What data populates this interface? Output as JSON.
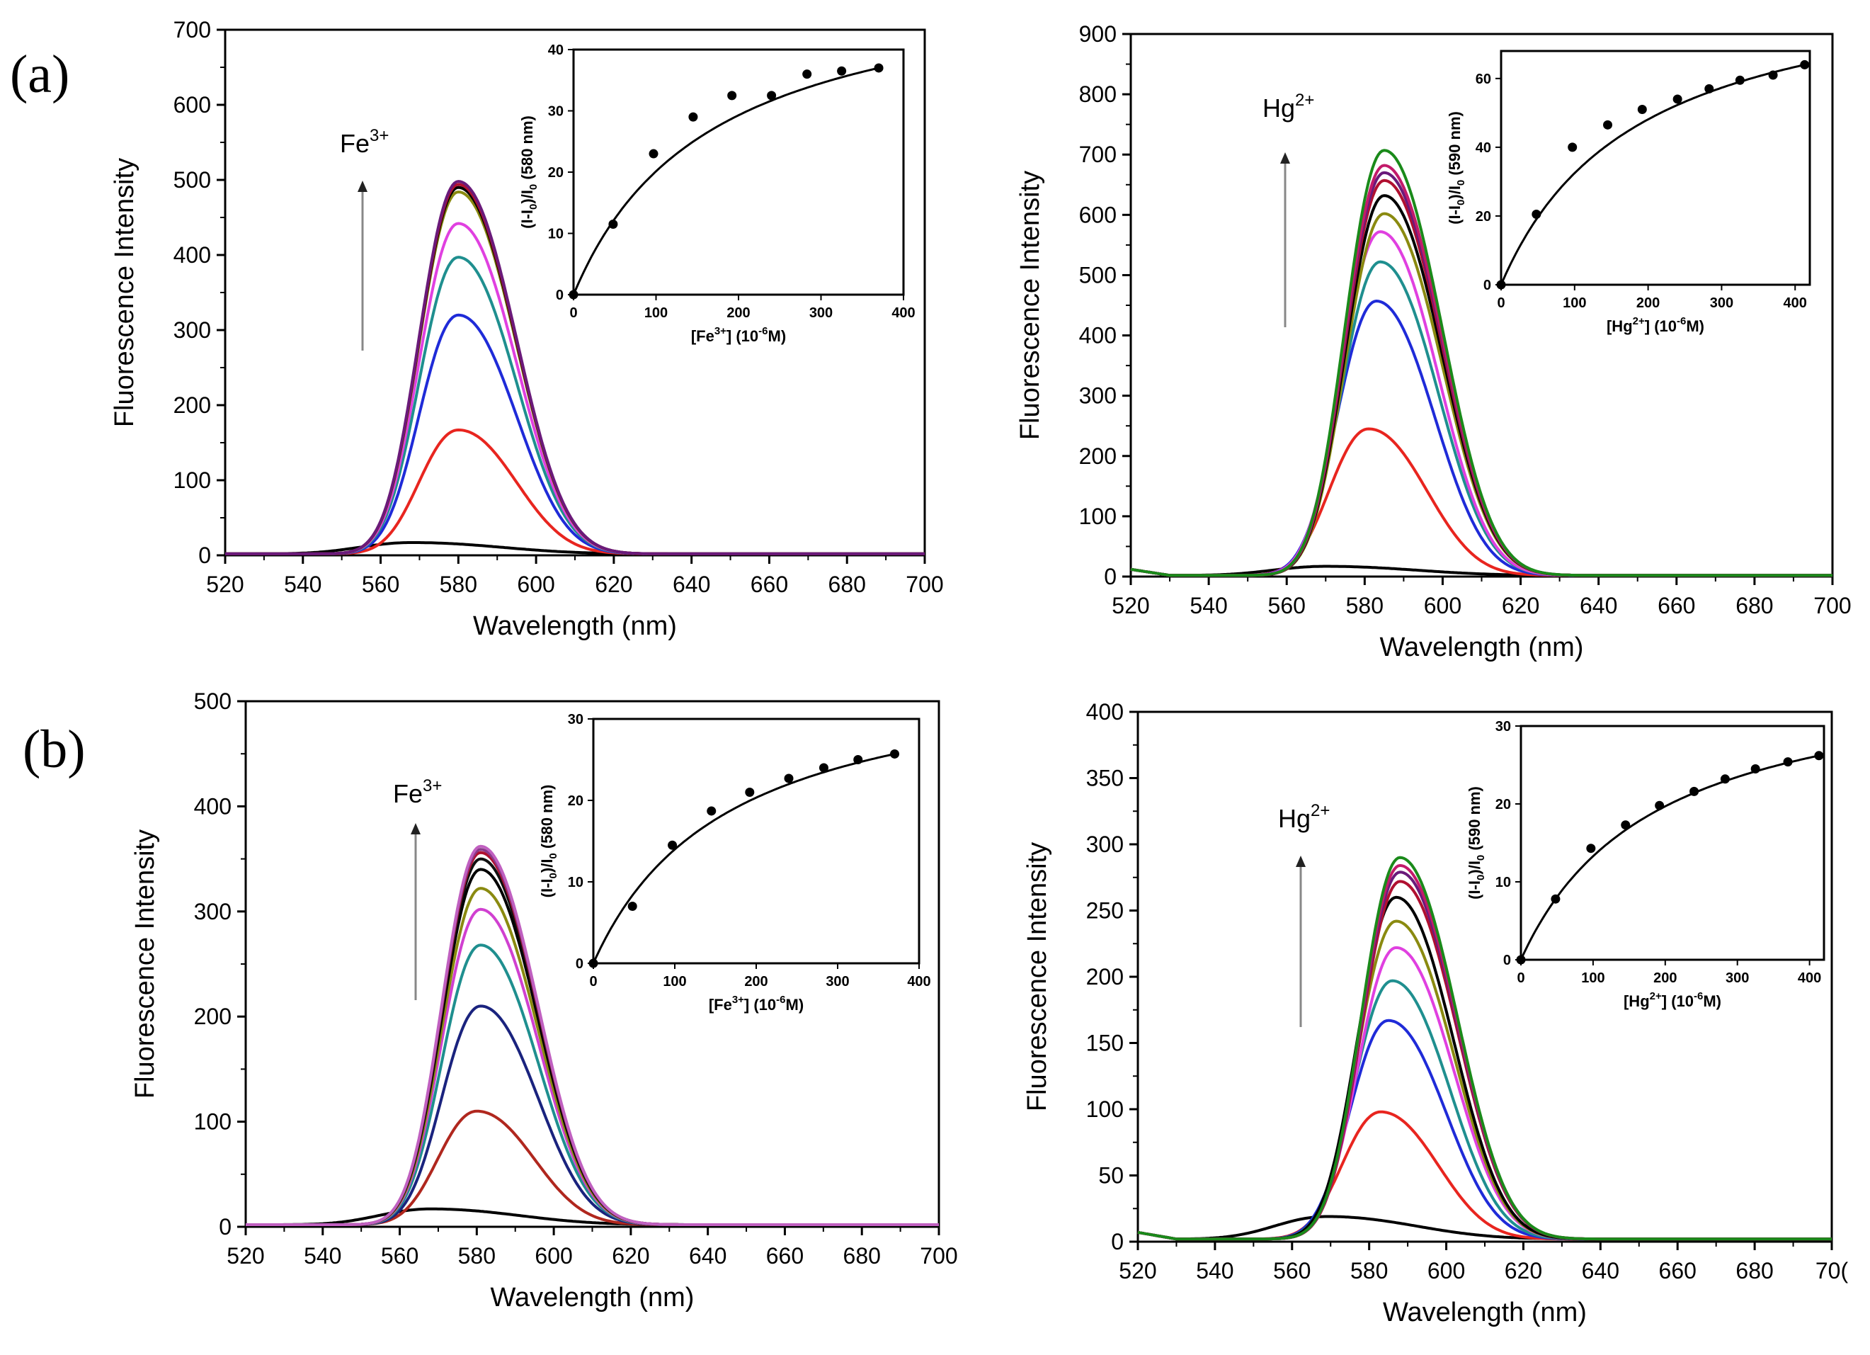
{
  "panel_labels": [
    "(a)",
    "(b)"
  ],
  "colors": {
    "curves": [
      "#000000",
      "#e8251f",
      "#1f2bd8",
      "#1f8f8f",
      "#e040e0",
      "#8a8a10",
      "#000000",
      "#b01030",
      "#6a1a7a",
      "#c21a6a",
      "#1a8a1a"
    ],
    "curves_b_fe": [
      "#000000",
      "#b0271e",
      "#1a237e",
      "#1f8f8f",
      "#d040d0",
      "#8a8a10",
      "#000000",
      "#101010",
      "#b01030",
      "#8a3a8a",
      "#c060c0"
    ]
  },
  "chart_data": [
    {
      "type": "line",
      "xlabel": "Wavelength (nm)",
      "ylabel": "Fluorescence Intensity",
      "xlim": [
        520,
        700
      ],
      "ylim": [
        0,
        700
      ],
      "xticks": [
        "520",
        "540",
        "560",
        "580",
        "600",
        "620",
        "640",
        "660",
        "680",
        "700"
      ],
      "yticks": [
        "0",
        "100",
        "200",
        "300",
        "400",
        "500",
        "600",
        "700"
      ],
      "annotation": {
        "ion": "Fe",
        "charge": "3+"
      },
      "series_peaks": [
        {
          "center": 568,
          "peak": 15
        },
        {
          "center": 580,
          "peak": 165
        },
        {
          "center": 580,
          "peak": 318
        },
        {
          "center": 580,
          "peak": 395
        },
        {
          "center": 580,
          "peak": 440
        },
        {
          "center": 580,
          "peak": 482
        },
        {
          "center": 580,
          "peak": 488
        },
        {
          "center": 580,
          "peak": 492
        },
        {
          "center": 580,
          "peak": 496
        }
      ],
      "inset": {
        "type": "scatter",
        "xlabel_base": "[Fe",
        "xlabel_sup": "3+",
        "xlabel_tail": "] (10",
        "xlabel_exp": "-6",
        "xlabel_end": "M)",
        "ylabel_main": "(I-I",
        "ylabel_sub": "0",
        "ylabel_mid": ")/I",
        "ylabel_sub2": "0",
        "ylabel_end": " (580 nm)",
        "xlim": [
          0,
          400
        ],
        "ylim": [
          0,
          40
        ],
        "xticks": [
          "0",
          "100",
          "200",
          "300",
          "400"
        ],
        "yticks": [
          "0",
          "10",
          "20",
          "30",
          "40"
        ],
        "x": [
          0,
          48,
          97,
          145,
          192,
          240,
          283,
          325,
          370
        ],
        "y": [
          0,
          11.5,
          23,
          29,
          32.5,
          32.5,
          36,
          36.5,
          37
        ]
      }
    },
    {
      "type": "line",
      "xlabel": "Wavelength (nm)",
      "ylabel": "Fluorescence Intensity",
      "xlim": [
        520,
        700
      ],
      "ylim": [
        0,
        900
      ],
      "xticks": [
        "520",
        "540",
        "560",
        "580",
        "600",
        "620",
        "640",
        "660",
        "680",
        "700"
      ],
      "yticks": [
        "0",
        "100",
        "200",
        "300",
        "400",
        "500",
        "600",
        "700",
        "800",
        "900"
      ],
      "annotation": {
        "ion": "Hg",
        "charge": "2+"
      },
      "series_peaks": [
        {
          "center": 570,
          "peak": 15
        },
        {
          "center": 581,
          "peak": 243
        },
        {
          "center": 583,
          "peak": 455
        },
        {
          "center": 584,
          "peak": 520
        },
        {
          "center": 584,
          "peak": 570
        },
        {
          "center": 585,
          "peak": 600
        },
        {
          "center": 585,
          "peak": 630
        },
        {
          "center": 585,
          "peak": 655
        },
        {
          "center": 585,
          "peak": 668
        },
        {
          "center": 585,
          "peak": 680
        },
        {
          "center": 585,
          "peak": 705
        }
      ],
      "inset": {
        "type": "scatter",
        "xlabel_base": "[Hg",
        "xlabel_sup": "2+",
        "xlabel_tail": "]  (10",
        "xlabel_exp": "-6",
        "xlabel_end": "M)",
        "ylabel_main": "(I-I",
        "ylabel_sub": "0",
        "ylabel_mid": ")/I",
        "ylabel_sub2": "0",
        "ylabel_end": " (590 nm)",
        "xlim": [
          0,
          420
        ],
        "ylim": [
          0,
          68
        ],
        "xticks": [
          "0",
          "100",
          "200",
          "300",
          "400"
        ],
        "yticks": [
          "0",
          "20",
          "40",
          "60"
        ],
        "x": [
          0,
          48,
          97,
          145,
          192,
          240,
          283,
          325,
          370,
          413
        ],
        "y": [
          0,
          20.5,
          40,
          46.5,
          51,
          54,
          57,
          59.5,
          61,
          64
        ]
      }
    },
    {
      "type": "line",
      "xlabel": "Wavelength (nm)",
      "ylabel": "Fluorescence Intensity",
      "xlim": [
        520,
        700
      ],
      "ylim": [
        0,
        500
      ],
      "xticks": [
        "520",
        "540",
        "560",
        "580",
        "600",
        "620",
        "640",
        "660",
        "680",
        "700"
      ],
      "yticks": [
        "0",
        "100",
        "200",
        "300",
        "400",
        "500"
      ],
      "annotation": {
        "ion": "Fe",
        "charge": "3+"
      },
      "series_peaks": [
        {
          "center": 568,
          "peak": 15
        },
        {
          "center": 580,
          "peak": 108
        },
        {
          "center": 581,
          "peak": 208
        },
        {
          "center": 581,
          "peak": 266
        },
        {
          "center": 581,
          "peak": 300
        },
        {
          "center": 581,
          "peak": 320
        },
        {
          "center": 581,
          "peak": 338
        },
        {
          "center": 581,
          "peak": 348
        },
        {
          "center": 581,
          "peak": 354
        },
        {
          "center": 581,
          "peak": 357
        },
        {
          "center": 581,
          "peak": 360
        }
      ],
      "inset": {
        "type": "scatter",
        "xlabel_base": "[Fe",
        "xlabel_sup": "3+",
        "xlabel_tail": "]  (10",
        "xlabel_exp": "-6",
        "xlabel_end": "M)",
        "ylabel_main": "(I-I",
        "ylabel_sub": "0",
        "ylabel_mid": ")/I",
        "ylabel_sub2": "0",
        "ylabel_end": " (580 nm)",
        "xlim": [
          0,
          400
        ],
        "ylim": [
          0,
          30
        ],
        "xticks": [
          "0",
          "100",
          "200",
          "300",
          "400"
        ],
        "yticks": [
          "0",
          "10",
          "20",
          "30"
        ],
        "x": [
          0,
          48,
          97,
          145,
          192,
          240,
          283,
          325,
          370
        ],
        "y": [
          0,
          7,
          14.5,
          18.7,
          21,
          22.7,
          24,
          25,
          25.7
        ]
      }
    },
    {
      "type": "line",
      "xlabel": "Wavelength (nm)",
      "ylabel": "Fluorescence Intensity",
      "xlim": [
        520,
        700
      ],
      "ylim": [
        0,
        400
      ],
      "xticks": [
        "520",
        "540",
        "560",
        "580",
        "600",
        "620",
        "640",
        "660",
        "680",
        "70("
      ],
      "yticks": [
        "0",
        "50",
        "100",
        "150",
        "200",
        "250",
        "300",
        "350",
        "400"
      ],
      "annotation": {
        "ion": "Hg",
        "charge": "2+"
      },
      "series_peaks": [
        {
          "center": 569,
          "peak": 17
        },
        {
          "center": 583,
          "peak": 96
        },
        {
          "center": 585,
          "peak": 165
        },
        {
          "center": 586,
          "peak": 195
        },
        {
          "center": 587,
          "peak": 220
        },
        {
          "center": 587,
          "peak": 240
        },
        {
          "center": 587,
          "peak": 258
        },
        {
          "center": 588,
          "peak": 270
        },
        {
          "center": 588,
          "peak": 277
        },
        {
          "center": 588,
          "peak": 282
        },
        {
          "center": 588,
          "peak": 288
        }
      ],
      "inset": {
        "type": "scatter",
        "xlabel_base": "[Hg",
        "xlabel_sup": "2+",
        "xlabel_tail": "]  (10",
        "xlabel_exp": "-6",
        "xlabel_end": "M)",
        "ylabel_main": "(I-I",
        "ylabel_sub": "0",
        "ylabel_mid": ")/I",
        "ylabel_sub2": "0",
        "ylabel_end": " (590 nm)",
        "xlim": [
          0,
          420
        ],
        "ylim": [
          0,
          30
        ],
        "xticks": [
          "0",
          "100",
          "200",
          "300",
          "400"
        ],
        "yticks": [
          "0",
          "10",
          "20",
          "30"
        ],
        "x": [
          0,
          48,
          97,
          145,
          192,
          240,
          283,
          325,
          370,
          413
        ],
        "y": [
          0,
          7.8,
          14.3,
          17.3,
          19.8,
          21.6,
          23.2,
          24.5,
          25.4,
          26.2
        ]
      }
    }
  ]
}
